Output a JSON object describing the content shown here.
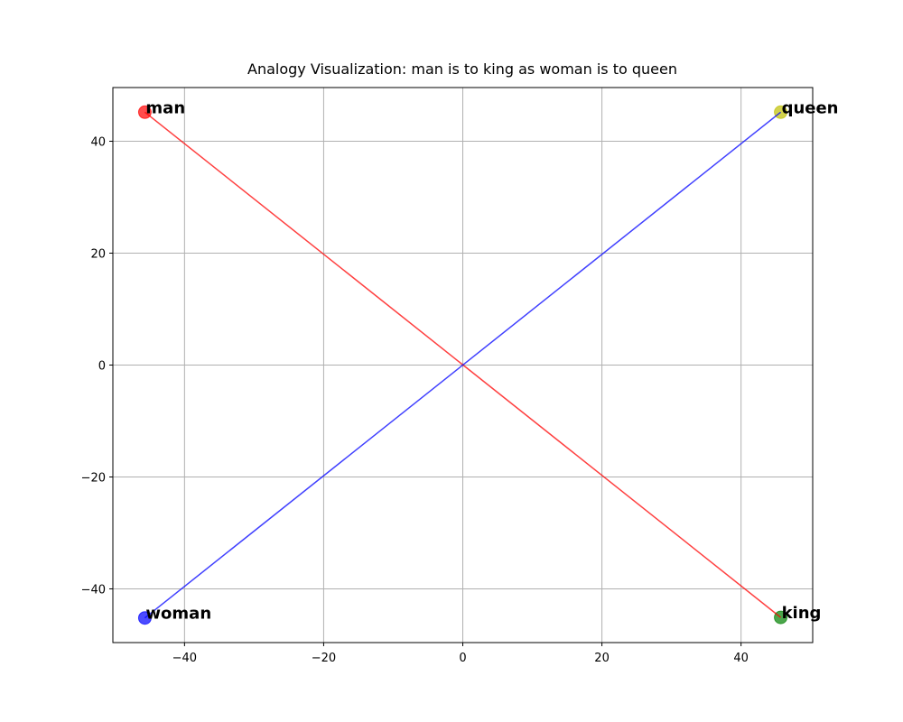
{
  "chart_data": {
    "type": "scatter",
    "title": "Analogy Visualization: man is to king as woman is to queen",
    "points": {
      "labels": [
        "man",
        "king",
        "woman",
        "queen"
      ],
      "x": [
        -45.7,
        45.7,
        -45.7,
        45.7
      ],
      "y": [
        45.2,
        -45.1,
        -45.2,
        45.2
      ],
      "colors": [
        "#ff0000",
        "#008000",
        "#0000ff",
        "#bfbf00"
      ]
    },
    "lines": [
      {
        "color": "#ff0000",
        "x": [
          -45.7,
          45.7
        ],
        "y": [
          45.2,
          -45.1
        ]
      },
      {
        "color": "#0000ff",
        "x": [
          -45.7,
          45.7
        ],
        "y": [
          -45.2,
          45.2
        ]
      }
    ],
    "xlim": [
      -50.3,
      50.3
    ],
    "ylim": [
      -49.6,
      49.6
    ],
    "xticks": [
      {
        "value": -40,
        "label": "−40"
      },
      {
        "value": -20,
        "label": "−20"
      },
      0,
      20,
      40
    ],
    "yticks": [
      {
        "value": -40,
        "label": "−40"
      },
      {
        "value": -20,
        "label": "−20"
      },
      0,
      20,
      40
    ],
    "grid": true
  }
}
